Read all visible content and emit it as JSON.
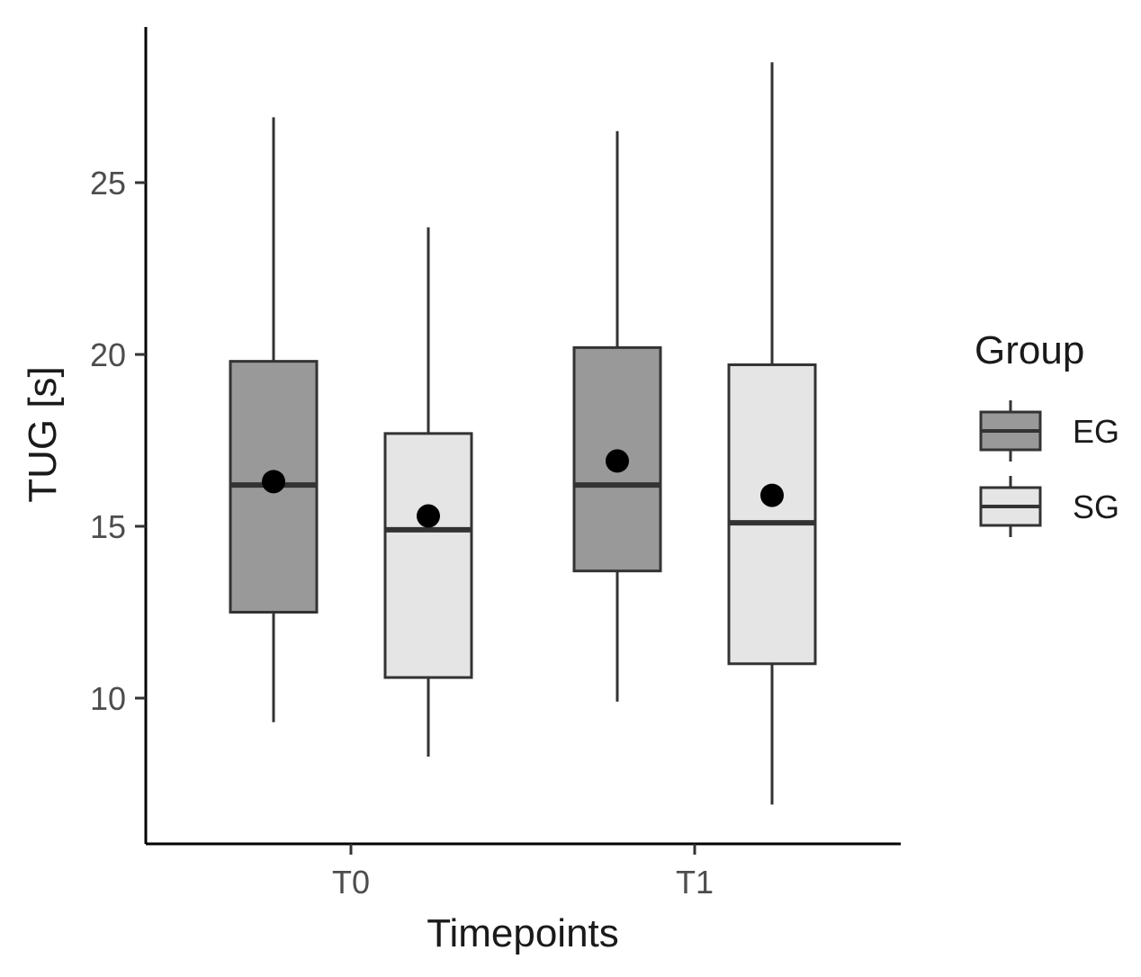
{
  "chart_data": {
    "type": "boxplot",
    "xlabel": "Timepoints",
    "ylabel": "TUG [s]",
    "ylim": [
      6,
      30
    ],
    "yticks": [
      10,
      15,
      20,
      25
    ],
    "categories": [
      "T0",
      "T1"
    ],
    "grid": false,
    "legend": {
      "title": "Group",
      "position": "right"
    },
    "colors": {
      "EG": "#999999",
      "SG": "#e5e5e5",
      "outline": "#333333",
      "mean_point": "#000000",
      "axis": "#000000"
    },
    "series": [
      {
        "name": "EG",
        "boxes": [
          {
            "category": "T0",
            "whisker_low": 9.3,
            "q1": 12.5,
            "median": 16.2,
            "q3": 19.8,
            "whisker_high": 26.9,
            "mean": 16.3
          },
          {
            "category": "T1",
            "whisker_low": 9.9,
            "q1": 13.7,
            "median": 16.2,
            "q3": 20.2,
            "whisker_high": 26.5,
            "mean": 16.9
          }
        ]
      },
      {
        "name": "SG",
        "boxes": [
          {
            "category": "T0",
            "whisker_low": 8.3,
            "q1": 10.6,
            "median": 14.9,
            "q3": 17.7,
            "whisker_high": 23.7,
            "mean": 15.3
          },
          {
            "category": "T1",
            "whisker_low": 6.9,
            "q1": 11.0,
            "median": 15.1,
            "q3": 19.7,
            "whisker_high": 28.5,
            "mean": 15.9
          }
        ]
      }
    ]
  }
}
